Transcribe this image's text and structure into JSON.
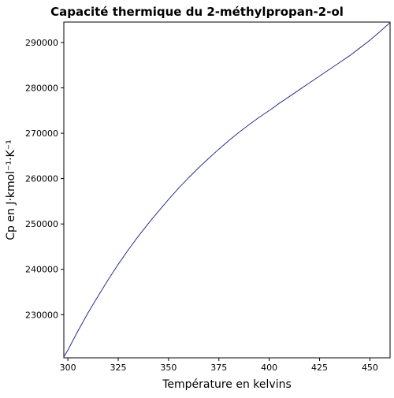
{
  "chart_data": {
    "type": "line",
    "title": "Capacité thermique du 2-méthylpropan-2-ol",
    "xlabel": "Température en kelvins",
    "ylabel": "Cp en J·kmol⁻¹·K⁻¹",
    "xlim": [
      298,
      460
    ],
    "ylim": [
      220500,
      294500
    ],
    "x_ticks": [
      {
        "value": 300,
        "label": "300"
      },
      {
        "value": 325,
        "label": "325"
      },
      {
        "value": 350,
        "label": "350"
      },
      {
        "value": 375,
        "label": "375"
      },
      {
        "value": 400,
        "label": "400"
      },
      {
        "value": 425,
        "label": "425"
      },
      {
        "value": 450,
        "label": "450"
      }
    ],
    "y_ticks": [
      {
        "value": 230000,
        "label": "230000"
      },
      {
        "value": 240000,
        "label": "240000"
      },
      {
        "value": 250000,
        "label": "250000"
      },
      {
        "value": 260000,
        "label": "260000"
      },
      {
        "value": 270000,
        "label": "270000"
      },
      {
        "value": 280000,
        "label": "280000"
      },
      {
        "value": 290000,
        "label": "290000"
      }
    ],
    "grid": false,
    "line_color": "#2b2b8c",
    "series": [
      {
        "x": [
          298,
          300,
          305,
          310,
          315,
          320,
          325,
          330,
          335,
          340,
          345,
          350,
          355,
          360,
          365,
          370,
          375,
          380,
          385,
          390,
          395,
          400,
          405,
          410,
          415,
          420,
          425,
          430,
          435,
          440,
          445,
          450,
          455,
          460
        ],
        "values": [
          220700,
          222200,
          226400,
          230400,
          234100,
          237700,
          241100,
          244300,
          247300,
          250100,
          252800,
          255400,
          257900,
          260200,
          262400,
          264500,
          266500,
          268400,
          270200,
          271900,
          273500,
          275000,
          276600,
          278100,
          279600,
          281100,
          282600,
          284100,
          285600,
          287100,
          288800,
          290500,
          292400,
          294400
        ]
      }
    ]
  }
}
